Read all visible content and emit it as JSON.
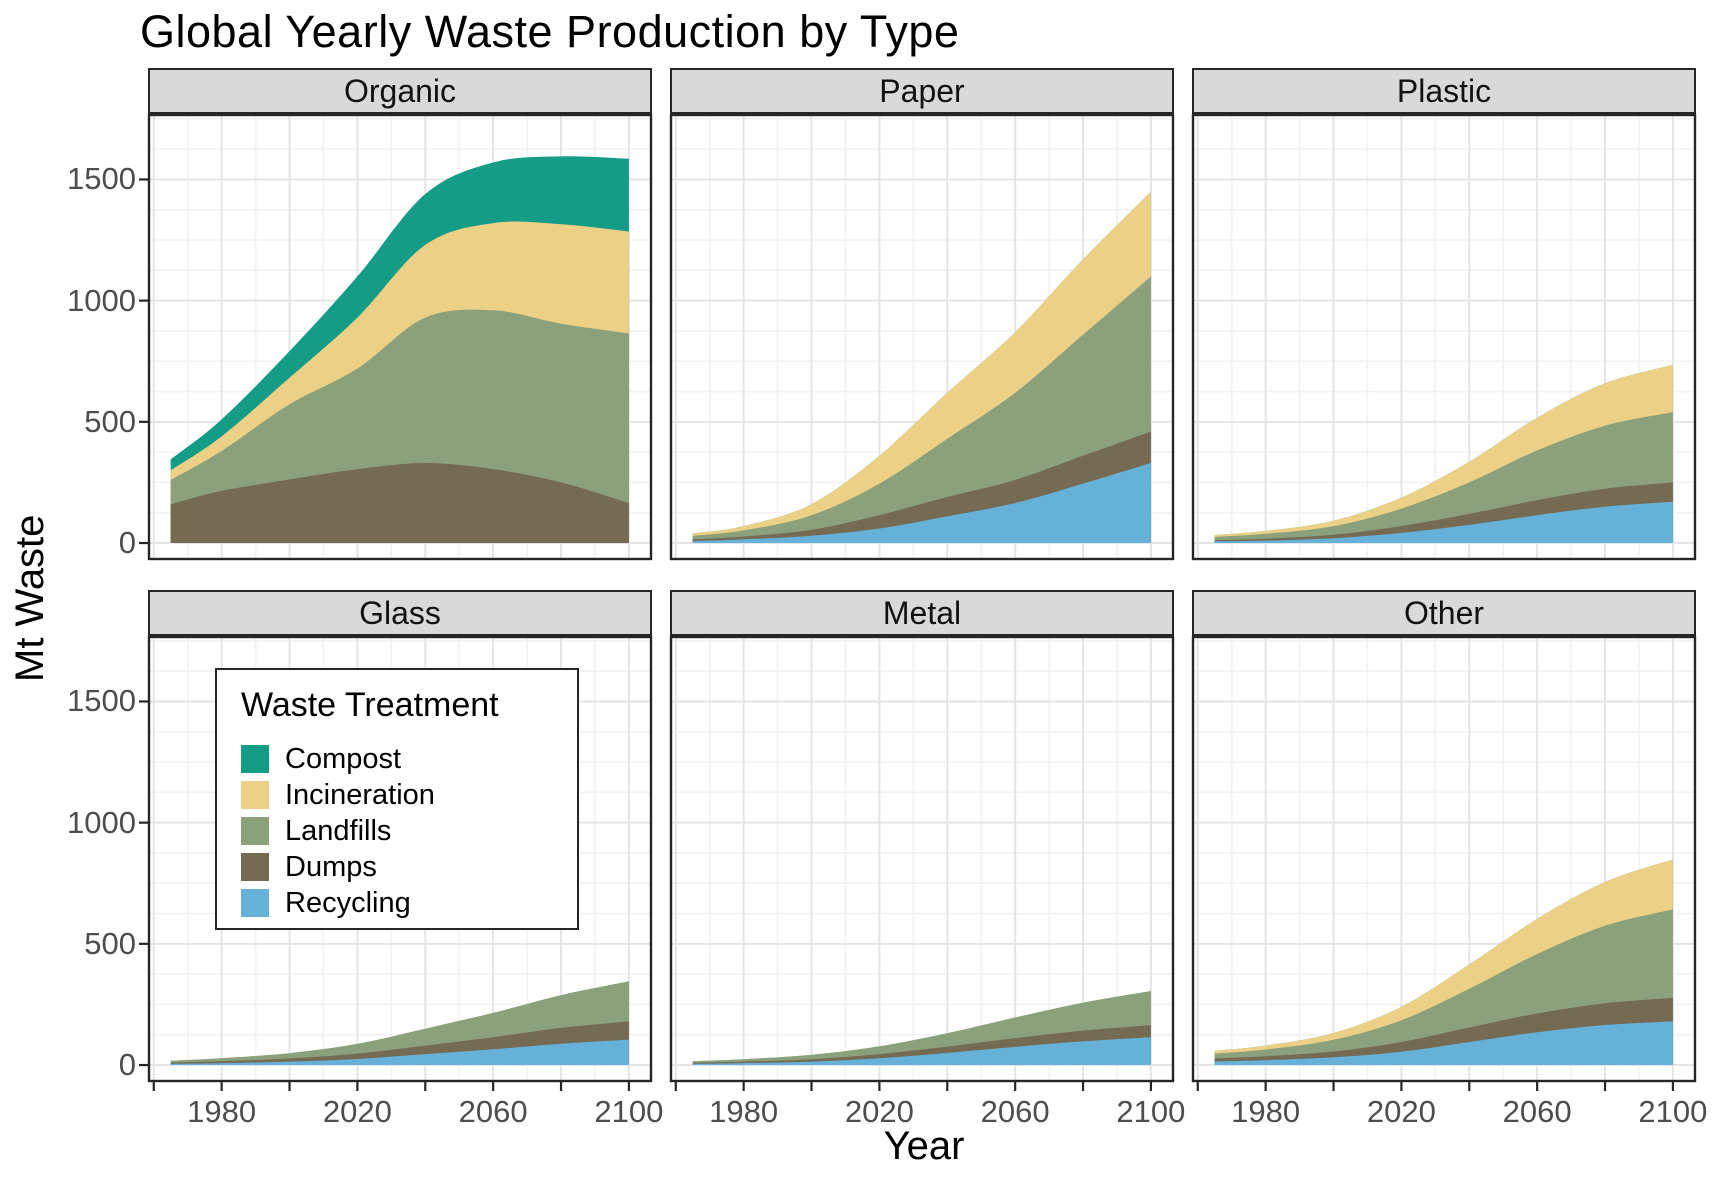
{
  "chart_data": {
    "type": "area",
    "stacked": true,
    "title": "Global Yearly Waste Production by Type",
    "xlabel": "Year",
    "ylabel": "Mt Waste",
    "x": [
      1965,
      1980,
      2000,
      2020,
      2040,
      2060,
      2080,
      2100
    ],
    "xlim": [
      1958.3,
      2106.8
    ],
    "ylim": [
      -70,
      1770
    ],
    "x_ticks": {
      "values": [
        1960,
        1980,
        2000,
        2020,
        2040,
        2060,
        2080,
        2100
      ],
      "labeled": [
        1980,
        2020,
        2060,
        2100
      ]
    },
    "y_ticks": {
      "values": [
        0,
        500,
        1000,
        1500
      ],
      "labels": [
        "0",
        "500",
        "1000",
        "1500"
      ]
    },
    "grid": {
      "x_minor_step": 10,
      "y_minor_step": 125
    },
    "stack_order_bottom_to_top": [
      "recycling",
      "dumps",
      "landfills",
      "incineration",
      "compost"
    ],
    "colors": {
      "compost": "#159c87",
      "incineration": "#ecd086",
      "landfills": "#8ba17c",
      "dumps": "#756a52",
      "recycling": "#66b1d8"
    },
    "legend": {
      "title": "Waste Treatment",
      "entries": [
        {
          "key": "compost",
          "label": "Compost"
        },
        {
          "key": "incineration",
          "label": "Incineration"
        },
        {
          "key": "landfills",
          "label": "Landfills"
        },
        {
          "key": "dumps",
          "label": "Dumps"
        },
        {
          "key": "recycling",
          "label": "Recycling"
        }
      ]
    },
    "facets": [
      {
        "name": "Organic",
        "series": {
          "recycling": [
            0,
            0,
            0,
            0,
            0,
            0,
            0,
            0
          ],
          "dumps": [
            160,
            215,
            262,
            305,
            330,
            305,
            250,
            165
          ],
          "landfills": [
            100,
            165,
            310,
            415,
            600,
            655,
            655,
            700
          ],
          "incineration": [
            40,
            60,
            110,
            210,
            300,
            360,
            410,
            420
          ],
          "compost": [
            45,
            70,
            110,
            170,
            210,
            250,
            280,
            300
          ]
        }
      },
      {
        "name": "Paper",
        "series": {
          "recycling": [
            8,
            15,
            30,
            60,
            110,
            165,
            245,
            330
          ],
          "dumps": [
            7,
            12,
            25,
            55,
            80,
            95,
            115,
            130
          ],
          "landfills": [
            15,
            25,
            60,
            130,
            240,
            360,
            500,
            640
          ],
          "incineration": [
            10,
            18,
            45,
            115,
            190,
            250,
            310,
            350
          ],
          "compost": [
            0,
            0,
            0,
            0,
            0,
            0,
            0,
            0
          ]
        }
      },
      {
        "name": "Plastic",
        "series": {
          "recycling": [
            7,
            10,
            20,
            42,
            75,
            115,
            150,
            170
          ],
          "dumps": [
            5,
            8,
            14,
            28,
            45,
            62,
            74,
            80
          ],
          "landfills": [
            13,
            20,
            36,
            72,
            130,
            205,
            260,
            290
          ],
          "incineration": [
            8,
            12,
            22,
            45,
            85,
            135,
            175,
            195
          ],
          "compost": [
            0,
            0,
            0,
            0,
            0,
            0,
            0,
            0
          ]
        }
      },
      {
        "name": "Glass",
        "series": {
          "recycling": [
            5,
            8,
            14,
            25,
            45,
            65,
            88,
            105
          ],
          "dumps": [
            5,
            8,
            13,
            22,
            35,
            50,
            65,
            75
          ],
          "landfills": [
            8,
            12,
            22,
            40,
            70,
            100,
            135,
            165
          ],
          "incineration": [
            0,
            0,
            0,
            0,
            0,
            0,
            0,
            0
          ],
          "compost": [
            0,
            0,
            0,
            0,
            0,
            0,
            0,
            0
          ]
        }
      },
      {
        "name": "Metal",
        "series": {
          "recycling": [
            5,
            8,
            14,
            28,
            50,
            75,
            98,
            115
          ],
          "dumps": [
            4,
            6,
            10,
            17,
            26,
            36,
            44,
            50
          ],
          "landfills": [
            7,
            10,
            18,
            32,
            55,
            85,
            115,
            140
          ],
          "incineration": [
            0,
            0,
            0,
            0,
            0,
            0,
            0,
            0
          ],
          "compost": [
            0,
            0,
            0,
            0,
            0,
            0,
            0,
            0
          ]
        }
      },
      {
        "name": "Other",
        "series": {
          "recycling": [
            15,
            20,
            32,
            55,
            95,
            135,
            165,
            180
          ],
          "dumps": [
            12,
            16,
            24,
            40,
            60,
            78,
            90,
            97
          ],
          "landfills": [
            20,
            28,
            48,
            90,
            160,
            245,
            320,
            365
          ],
          "incineration": [
            12,
            16,
            28,
            55,
            100,
            145,
            180,
            206
          ],
          "compost": [
            0,
            0,
            0,
            0,
            0,
            0,
            0,
            0
          ]
        }
      }
    ]
  }
}
